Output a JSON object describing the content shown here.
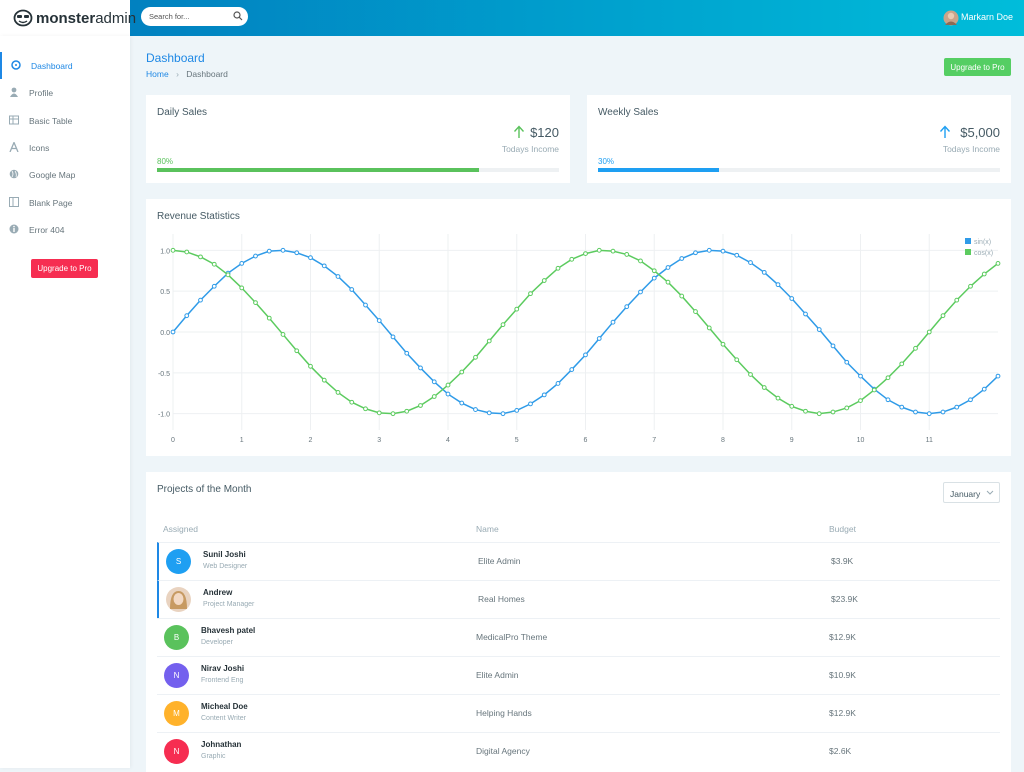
{
  "topbar": {
    "brand_bold": "monster",
    "brand_light": "admin",
    "search_placeholder": "Search for...",
    "user": "Markarn Doe"
  },
  "sidebar": {
    "menu": [
      "Dashboard",
      "Profile",
      "Basic Table",
      "Icons",
      "Google Map",
      "Blank Page",
      "Error 404"
    ],
    "button": "Upgrade to Pro"
  },
  "header": {
    "title": "Dashboard",
    "breadcrumb": [
      "Home",
      "Dashboard"
    ],
    "button": "Upgrade to Pro"
  },
  "stats": [
    {
      "title": "Daily Sales",
      "amount": "$120",
      "caption": "Todays Income",
      "progress": {
        "value": 80,
        "label": "80%"
      },
      "color": "#5ac25c"
    },
    {
      "title": "Weekly Sales",
      "amount": "$5,000",
      "caption": "Todays Income",
      "progress": {
        "value": 30,
        "label": "30%"
      },
      "color": "#1e9ff2"
    }
  ],
  "chart_data": {
    "type": "line",
    "title": "Revenue Statistics",
    "x": [
      0,
      0.2,
      0.4,
      0.6,
      0.8,
      1,
      1.2,
      1.4,
      1.6,
      1.8,
      2,
      2.2,
      2.4,
      2.6,
      2.8,
      3,
      3.2,
      3.4,
      3.6,
      3.8,
      4,
      4.2,
      4.4,
      4.6,
      4.8,
      5,
      5.2,
      5.4,
      5.6,
      5.8,
      6,
      6.2,
      6.4,
      6.6,
      6.8,
      7,
      7.2,
      7.4,
      7.6,
      7.8,
      8,
      8.2,
      8.4,
      8.6,
      8.8,
      9,
      9.2,
      9.4,
      9.6,
      9.8,
      10,
      10.2,
      10.4,
      10.6,
      10.8,
      11,
      11.2,
      11.4,
      11.6,
      11.8,
      12
    ],
    "series": [
      {
        "name": "sin(x)",
        "color": "#2f9be8",
        "values": [
          0,
          0.2,
          0.39,
          0.56,
          0.72,
          0.84,
          0.93,
          0.99,
          1,
          0.97,
          0.91,
          0.81,
          0.68,
          0.52,
          0.33,
          0.14,
          -0.06,
          -0.26,
          -0.44,
          -0.61,
          -0.76,
          -0.87,
          -0.95,
          -0.99,
          -1,
          -0.96,
          -0.88,
          -0.77,
          -0.63,
          -0.46,
          -0.28,
          -0.08,
          0.12,
          0.31,
          0.49,
          0.66,
          0.79,
          0.9,
          0.97,
          1,
          0.99,
          0.94,
          0.85,
          0.73,
          0.58,
          0.41,
          0.22,
          0.03,
          -0.17,
          -0.37,
          -0.54,
          -0.7,
          -0.83,
          -0.92,
          -0.98,
          -1,
          -0.98,
          -0.92,
          -0.83,
          -0.7,
          -0.54
        ]
      },
      {
        "name": "cos(x)",
        "color": "#5ccb5f",
        "values": [
          1,
          0.98,
          0.92,
          0.83,
          0.7,
          0.54,
          0.36,
          0.17,
          -0.03,
          -0.23,
          -0.42,
          -0.59,
          -0.74,
          -0.86,
          -0.94,
          -0.99,
          -1,
          -0.97,
          -0.9,
          -0.79,
          -0.65,
          -0.49,
          -0.31,
          -0.11,
          0.09,
          0.28,
          0.47,
          0.63,
          0.78,
          0.89,
          0.96,
          1,
          0.99,
          0.95,
          0.87,
          0.75,
          0.61,
          0.44,
          0.25,
          0.05,
          -0.15,
          -0.34,
          -0.52,
          -0.68,
          -0.81,
          -0.91,
          -0.97,
          -1,
          -0.98,
          -0.93,
          -0.84,
          -0.71,
          -0.56,
          -0.39,
          -0.2,
          0,
          0.2,
          0.39,
          0.56,
          0.71,
          0.84
        ]
      }
    ],
    "xlim": [
      0,
      12
    ],
    "ylim": [
      -1.2,
      1.2
    ],
    "xticks": [
      0,
      1,
      2,
      3,
      4,
      5,
      6,
      7,
      8,
      9,
      10,
      11
    ],
    "yticks": [
      {
        "value": 1,
        "label": "1.0"
      },
      {
        "value": 0.5,
        "label": "0.5"
      },
      {
        "value": 0,
        "label": "0.0"
      },
      {
        "value": -0.5,
        "label": "-0.5"
      },
      {
        "value": -1,
        "label": "-1.0"
      }
    ],
    "grid": true,
    "legend": "top-right"
  },
  "projects": {
    "title": "Projects of the Month",
    "filter": "January",
    "columns": [
      "Assigned",
      "Name",
      "Budget"
    ],
    "rows": [
      {
        "avatar": "S",
        "avatar_color": "#1e9ff2",
        "name": "Sunil Joshi",
        "role": "Web Designer",
        "project": "Elite Admin",
        "budget": "$3.9K"
      },
      {
        "name": "Andrew",
        "role": "Project Manager",
        "project": "Real Homes",
        "budget": "$23.9K"
      },
      {
        "avatar": "B",
        "avatar_color": "#5ac25c",
        "name": "Bhavesh patel",
        "role": "Developer",
        "project": "MedicalPro Theme",
        "budget": "$12.9K"
      },
      {
        "avatar": "N",
        "avatar_color": "#7460ee",
        "name": "Nirav Joshi",
        "role": "Frontend Eng",
        "project": "Elite Admin",
        "budget": "$10.9K"
      },
      {
        "avatar": "M",
        "avatar_color": "#ffb22b",
        "name": "Micheal Doe",
        "role": "Content Writer",
        "project": "Helping Hands",
        "budget": "$12.9K"
      },
      {
        "avatar": "N",
        "avatar_color": "#f62d51",
        "name": "Johnathan",
        "role": "Graphic",
        "project": "Digital Agency",
        "budget": "$2.6K"
      }
    ]
  }
}
